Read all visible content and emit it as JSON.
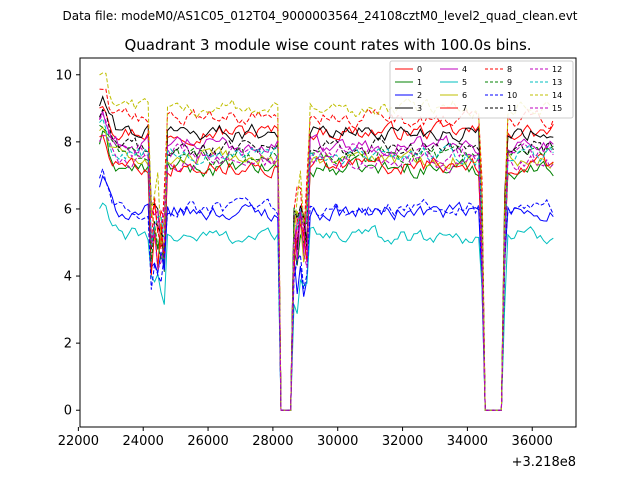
{
  "chart_data": {
    "type": "line",
    "suptitle": "Data file: modeM0/AS1C05_012T04_9000003564_24108cztM0_level2_quad_clean.evt",
    "title": "Quadrant 3 module wise count rates with 100.0s bins.",
    "xlabel": "",
    "ylabel": "",
    "offset_text": "+3.218e8",
    "xlim": [
      22050,
      37350
    ],
    "ylim": [
      -0.5,
      10.5
    ],
    "x_ticks": [
      22000,
      24000,
      26000,
      28000,
      30000,
      32000,
      34000,
      36000
    ],
    "x_tick_labels": [
      "22000",
      "24000",
      "26000",
      "28000",
      "30000",
      "32000",
      "34000",
      "36000"
    ],
    "y_ticks": [
      0,
      2,
      4,
      6,
      8,
      10
    ],
    "y_tick_labels": [
      "0",
      "2",
      "4",
      "6",
      "8",
      "10"
    ],
    "legend_position": "top-right",
    "x_start": 22650,
    "bin_width": 100,
    "n_bins": 141,
    "gap_bins": [
      [
        16,
        20
      ],
      [
        59,
        64
      ],
      [
        118,
        125
      ]
    ],
    "zero_bins": [
      [
        56,
        59
      ],
      [
        119,
        124
      ]
    ],
    "series": [
      {
        "name": "0",
        "color": "#ff0000",
        "dash": false,
        "level": 8.3
      },
      {
        "name": "1",
        "color": "#008000",
        "dash": false,
        "level": 7.2
      },
      {
        "name": "2",
        "color": "#0000ff",
        "dash": false,
        "level": 5.9
      },
      {
        "name": "3",
        "color": "#000000",
        "dash": false,
        "level": 8.3
      },
      {
        "name": "4",
        "color": "#bf00bf",
        "dash": false,
        "level": 7.9
      },
      {
        "name": "5",
        "color": "#00bfbf",
        "dash": false,
        "level": 5.2
      },
      {
        "name": "6",
        "color": "#bfbf00",
        "dash": false,
        "level": 7.5
      },
      {
        "name": "7",
        "color": "#ff0000",
        "dash": false,
        "level": 7.3
      },
      {
        "name": "8",
        "color": "#ff0000",
        "dash": true,
        "level": 8.7
      },
      {
        "name": "9",
        "color": "#008000",
        "dash": true,
        "level": 7.6
      },
      {
        "name": "10",
        "color": "#0000ff",
        "dash": true,
        "level": 6.0
      },
      {
        "name": "11",
        "color": "#000000",
        "dash": true,
        "level": 7.8
      },
      {
        "name": "12",
        "color": "#bf00bf",
        "dash": true,
        "level": 7.7
      },
      {
        "name": "13",
        "color": "#00bfbf",
        "dash": true,
        "level": 7.6
      },
      {
        "name": "14",
        "color": "#bfbf00",
        "dash": true,
        "level": 9.0
      },
      {
        "name": "15",
        "color": "#bf00bf",
        "dash": true,
        "level": 7.4
      }
    ]
  }
}
